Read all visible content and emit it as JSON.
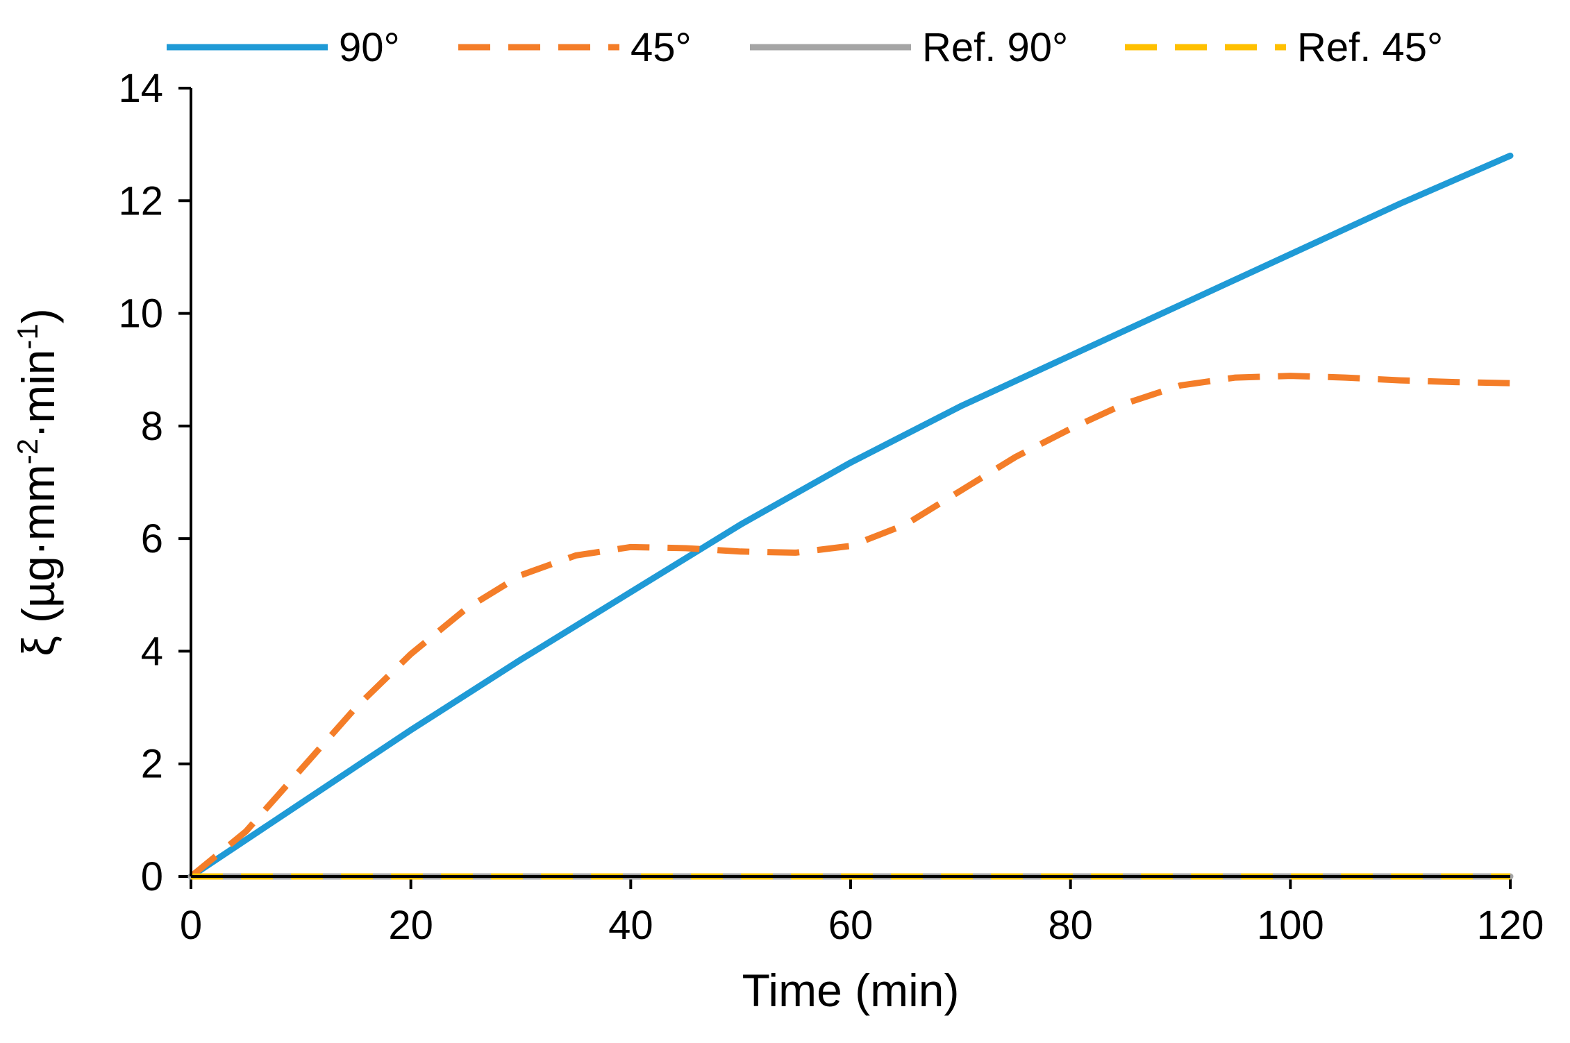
{
  "chart_data": {
    "type": "line",
    "title": "",
    "xlabel": "Time (min)",
    "ylabel_parts": [
      "ξ (µg·mm",
      "-2",
      "·min",
      "-1",
      ")"
    ],
    "xlim": [
      0,
      120
    ],
    "ylim": [
      0,
      14
    ],
    "xticks": [
      0,
      20,
      40,
      60,
      80,
      100,
      120
    ],
    "yticks": [
      0,
      2,
      4,
      6,
      8,
      10,
      12,
      14
    ],
    "grid": false,
    "legend_position": "top",
    "series": [
      {
        "name": "90°",
        "color": "#1f9ad6",
        "dashed": false,
        "x": [
          0,
          10,
          20,
          30,
          40,
          50,
          60,
          70,
          80,
          90,
          100,
          110,
          120
        ],
        "y": [
          0,
          1.3,
          2.6,
          3.85,
          5.05,
          6.25,
          7.35,
          8.35,
          9.25,
          10.15,
          11.05,
          11.95,
          12.8
        ]
      },
      {
        "name": "45°",
        "color": "#f47d28",
        "dashed": true,
        "x": [
          0,
          5,
          10,
          15,
          20,
          25,
          30,
          35,
          40,
          45,
          50,
          55,
          60,
          65,
          70,
          75,
          80,
          85,
          90,
          95,
          100,
          105,
          110,
          115,
          120
        ],
        "y": [
          0,
          0.8,
          1.9,
          3.0,
          3.95,
          4.75,
          5.35,
          5.7,
          5.85,
          5.83,
          5.77,
          5.75,
          5.87,
          6.25,
          6.85,
          7.45,
          7.95,
          8.4,
          8.72,
          8.86,
          8.89,
          8.86,
          8.81,
          8.78,
          8.76
        ]
      },
      {
        "name": "Ref. 90°",
        "color": "#a5a5a5",
        "dashed": false,
        "x": [
          0,
          120
        ],
        "y": [
          0,
          0
        ]
      },
      {
        "name": "Ref. 45°",
        "color": "#ffc000",
        "dashed": true,
        "x": [
          0,
          120
        ],
        "y": [
          0,
          0
        ]
      }
    ]
  }
}
